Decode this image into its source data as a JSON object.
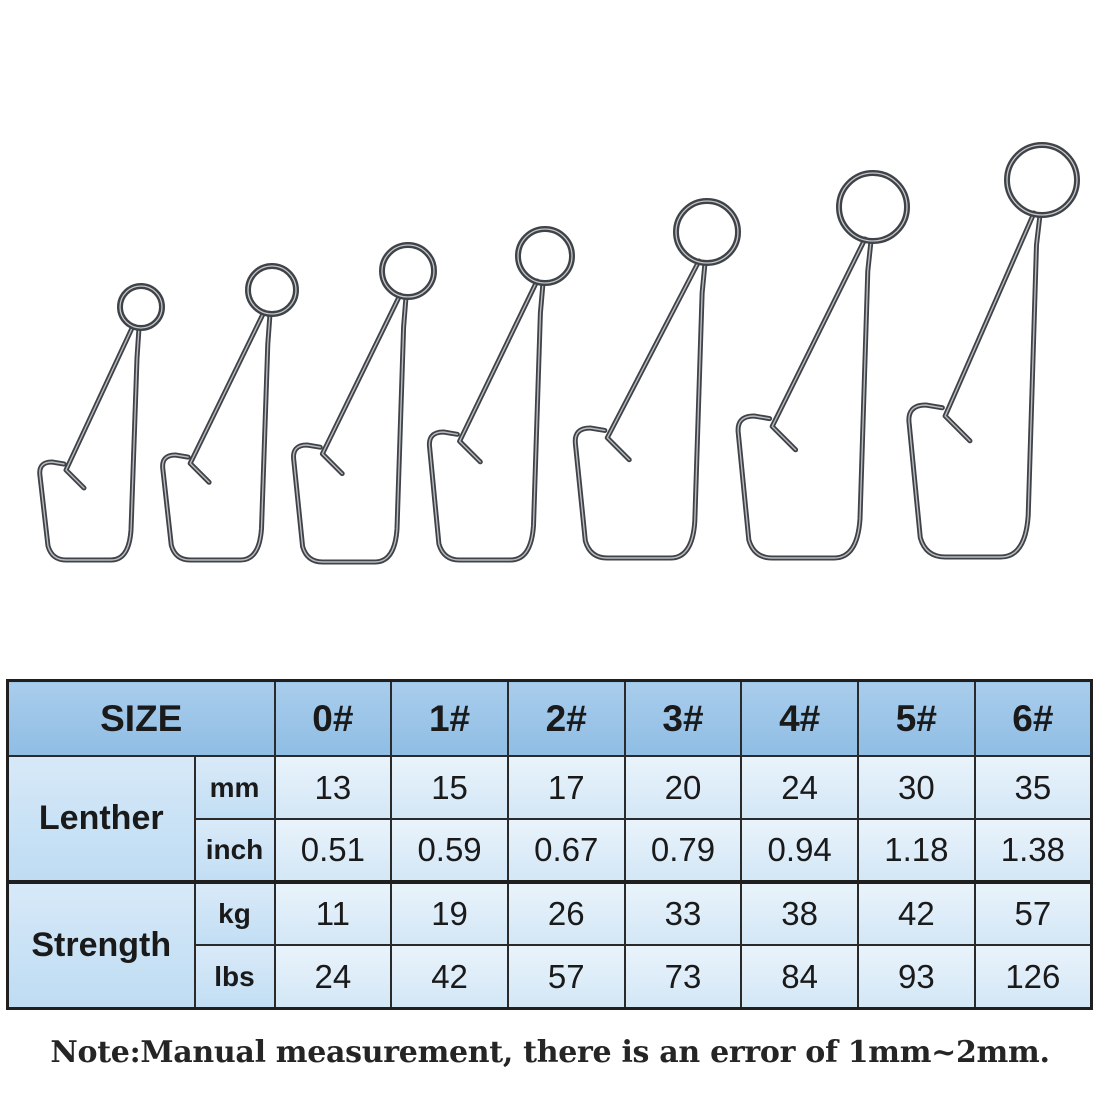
{
  "table": {
    "size_header": "SIZE",
    "sizes": [
      "0#",
      "1#",
      "2#",
      "3#",
      "4#",
      "5#",
      "6#"
    ],
    "length": {
      "label": "Lenther",
      "mm": {
        "unit": "mm",
        "values": [
          "13",
          "15",
          "17",
          "20",
          "24",
          "30",
          "35"
        ]
      },
      "inch": {
        "unit": "inch",
        "values": [
          "0.51",
          "0.59",
          "0.67",
          "0.79",
          "0.94",
          "1.18",
          "1.38"
        ]
      }
    },
    "strength": {
      "label": "Strength",
      "kg": {
        "unit": "kg",
        "values": [
          "11",
          "19",
          "26",
          "33",
          "38",
          "42",
          "57"
        ]
      },
      "lbs": {
        "unit": "lbs",
        "values": [
          "24",
          "42",
          "57",
          "73",
          "84",
          "93",
          "126"
        ]
      }
    }
  },
  "note": "Note:Manual measurement, there is an error of 1mm~2mm.",
  "colors": {
    "header_fill": "#9ec6e9",
    "cell_fill": "#dcebf8",
    "wire": "#3f4246"
  },
  "product_icons": [
    "snap-0-icon",
    "snap-1-icon",
    "snap-2-icon",
    "snap-3-icon",
    "snap-4-icon",
    "snap-5-icon",
    "snap-6-icon"
  ]
}
